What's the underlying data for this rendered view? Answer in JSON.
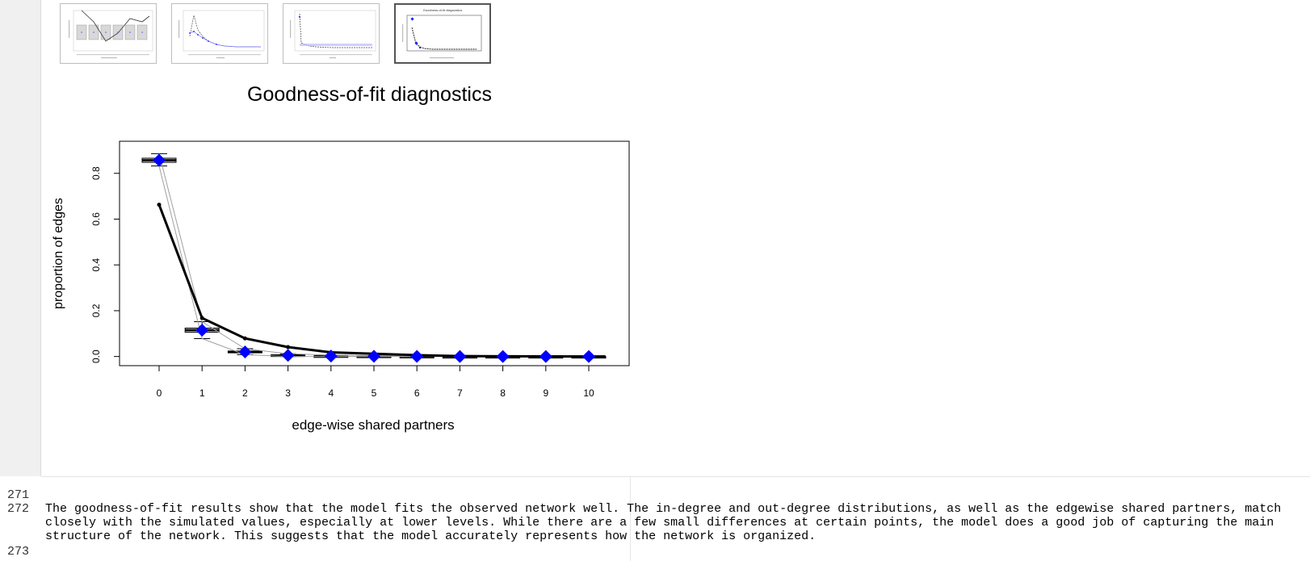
{
  "thumbnails": [
    {
      "name": "plot-1",
      "selected": false
    },
    {
      "name": "plot-2",
      "selected": false
    },
    {
      "name": "plot-3",
      "selected": false
    },
    {
      "name": "plot-4",
      "selected": true,
      "caption": "Goodness-of-fit diagnostics"
    }
  ],
  "plot": {
    "title": "Goodness-of-fit diagnostics"
  },
  "chart_data": {
    "type": "line",
    "title": "Goodness-of-fit diagnostics",
    "xlabel": "edge-wise shared partners",
    "ylabel": "proportion of edges",
    "categories": [
      0,
      1,
      2,
      3,
      4,
      5,
      6,
      7,
      8,
      9,
      10
    ],
    "ylim": [
      -0.04,
      0.94
    ],
    "yticks": [
      "0.0",
      "0.2",
      "0.4",
      "0.6",
      "0.8"
    ],
    "series": [
      {
        "role": "observed",
        "values": [
          0.663,
          0.168,
          0.079,
          0.041,
          0.018,
          0.012,
          0.006,
          0.002,
          0.001,
          0.0005,
          0.0
        ]
      },
      {
        "role": "simulated-mean",
        "values": [
          0.857,
          0.115,
          0.02,
          0.005,
          0.002,
          0.001,
          0.0005,
          0.0,
          0.0,
          0.0,
          0.0
        ]
      }
    ],
    "boxes": [
      {
        "x": 0,
        "q1": 0.848,
        "median": 0.857,
        "q3": 0.866,
        "whisker_low": 0.832,
        "whisker_high": 0.886
      },
      {
        "x": 1,
        "q1": 0.106,
        "median": 0.115,
        "q3": 0.124,
        "whisker_low": 0.078,
        "whisker_high": 0.152
      },
      {
        "x": 2,
        "q1": 0.016,
        "median": 0.02,
        "q3": 0.024,
        "whisker_low": 0.008,
        "whisker_high": 0.034
      },
      {
        "x": 3,
        "q1": 0.003,
        "median": 0.005,
        "q3": 0.007,
        "whisker_low": 0.0,
        "whisker_high": 0.012
      },
      {
        "x": 4,
        "q1": 0.001,
        "median": 0.002,
        "q3": 0.003,
        "whisker_low": 0.0,
        "whisker_high": 0.006
      },
      {
        "x": 5,
        "q1": 0.0,
        "median": 0.001,
        "q3": 0.002,
        "whisker_low": 0.0,
        "whisker_high": 0.004
      },
      {
        "x": 6,
        "q1": 0.0,
        "median": 0.0005,
        "q3": 0.001,
        "whisker_low": 0.0,
        "whisker_high": 0.002
      },
      {
        "x": 7,
        "q1": 0.0,
        "median": 0.0,
        "q3": 0.0,
        "whisker_low": 0.0,
        "whisker_high": 0.0
      },
      {
        "x": 8,
        "q1": 0.0,
        "median": 0.0,
        "q3": 0.0,
        "whisker_low": 0.0,
        "whisker_high": 0.0
      },
      {
        "x": 9,
        "q1": 0.0,
        "median": 0.0,
        "q3": 0.0,
        "whisker_low": 0.0,
        "whisker_high": 0.0
      },
      {
        "x": 10,
        "q1": 0.0,
        "median": 0.0,
        "q3": 0.0,
        "whisker_low": 0.0,
        "whisker_high": 0.0
      }
    ],
    "grid": false,
    "colors": {
      "observed": "#000000",
      "simulated": "#0000ff",
      "quantile": "#a0a0a0"
    }
  },
  "editor": {
    "lines": [
      {
        "no": "271",
        "text": ""
      },
      {
        "no": "272",
        "text": "The goodness-of-fit results show that the model fits the observed network well. The in-degree and out-degree distributions, as well as the edgewise shared partners, match"
      },
      {
        "no": "",
        "text": "closely with the simulated values, especially at lower levels. While there are a few small differences at certain points, the model does a good job of capturing the main"
      },
      {
        "no": "",
        "text": "structure of the network. This suggests that the model accurately represents how the network is organized."
      },
      {
        "no": "273",
        "text": ""
      }
    ]
  }
}
